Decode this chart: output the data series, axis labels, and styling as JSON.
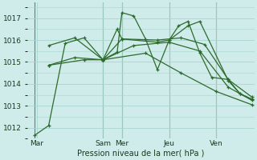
{
  "background_color": "#d0ecea",
  "grid_color": "#a8d5d0",
  "line_color": "#2d6a2d",
  "vline_color": "#5a8a5a",
  "xlabel": "Pression niveau de la mer( hPa )",
  "ylim": [
    1011.5,
    1017.7
  ],
  "yticks": [
    1012,
    1013,
    1014,
    1015,
    1016,
    1017
  ],
  "xlim": [
    0,
    96
  ],
  "day_ticks": [
    4,
    32,
    40,
    60,
    80
  ],
  "day_labels": [
    "Mar",
    "Sam",
    "Mer",
    "Jeu",
    "Ven"
  ],
  "vline_x": [
    3,
    32,
    40,
    60,
    80
  ],
  "series": [
    {
      "x": [
        3,
        9,
        16,
        24,
        32,
        38,
        40,
        45,
        50,
        55,
        60,
        64,
        68,
        73,
        78,
        85,
        90,
        95
      ],
      "y": [
        1011.65,
        1012.1,
        1015.85,
        1016.1,
        1015.1,
        1015.45,
        1017.25,
        1017.1,
        1016.05,
        1014.65,
        1016.0,
        1016.65,
        1016.85,
        1015.4,
        1014.3,
        1014.2,
        1013.55,
        1013.3
      ]
    },
    {
      "x": [
        32,
        38,
        40,
        55,
        60,
        68,
        73,
        85,
        90,
        95
      ],
      "y": [
        1015.1,
        1016.5,
        1016.05,
        1015.9,
        1016.0,
        1016.65,
        1016.85,
        1014.15,
        1013.55,
        1013.3
      ]
    },
    {
      "x": [
        32,
        40,
        55,
        65,
        75,
        85,
        95
      ],
      "y": [
        1015.1,
        1016.05,
        1016.0,
        1016.1,
        1015.8,
        1014.2,
        1013.4
      ]
    },
    {
      "x": [
        32,
        45,
        60,
        73,
        85,
        95
      ],
      "y": [
        1015.1,
        1015.75,
        1015.9,
        1015.5,
        1013.85,
        1013.25
      ]
    },
    {
      "x": [
        32,
        50,
        65,
        80,
        95
      ],
      "y": [
        1015.1,
        1015.4,
        1014.5,
        1013.65,
        1013.05
      ]
    }
  ],
  "left_fans": [
    {
      "x": [
        9,
        20,
        32
      ],
      "y": [
        1015.75,
        1016.1,
        1015.1
      ]
    },
    {
      "x": [
        9,
        20,
        32
      ],
      "y": [
        1014.85,
        1015.2,
        1015.1
      ]
    },
    {
      "x": [
        9,
        24,
        32
      ],
      "y": [
        1014.85,
        1015.1,
        1015.1
      ]
    }
  ]
}
